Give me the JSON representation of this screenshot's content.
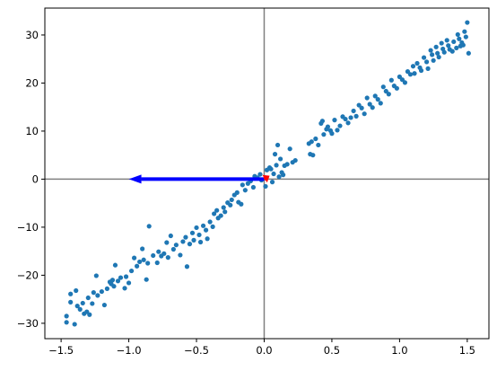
{
  "chart_data": {
    "type": "scatter",
    "title": "",
    "xlabel": "",
    "ylabel": "",
    "xlim": [
      -1.62,
      1.66
    ],
    "ylim": [
      -33.2,
      35.6
    ],
    "xticks": [
      -1.5,
      -1.0,
      -0.5,
      0.0,
      0.5,
      1.0,
      1.5
    ],
    "xtick_labels": [
      "−1.5",
      "−1.0",
      "−0.5",
      "0.0",
      "0.5",
      "1.0",
      "1.5"
    ],
    "yticks": [
      -30,
      -20,
      -10,
      0,
      10,
      20,
      30
    ],
    "ytick_labels": [
      "−30",
      "−20",
      "−10",
      "0",
      "10",
      "20",
      "30"
    ],
    "grid": false,
    "reference_lines": {
      "x": 0,
      "y": 0,
      "color": "#808080"
    },
    "arrows": [
      {
        "x0": 0.0,
        "y0": 0.0,
        "x1": -1.0,
        "y1": 0.0,
        "color": "#0000ff"
      },
      {
        "x0": 0.0,
        "y0": 0.0,
        "x1": 0.04,
        "y1": 0.7,
        "color": "#ff0000"
      }
    ],
    "series": [
      {
        "color": "#1f77b4",
        "points": [
          [
            -1.46,
            -29.8
          ],
          [
            -1.46,
            -28.5
          ],
          [
            -1.43,
            -25.6
          ],
          [
            -1.43,
            -23.9
          ],
          [
            -1.4,
            -30.2
          ],
          [
            -1.39,
            -23.2
          ],
          [
            -1.38,
            -26.4
          ],
          [
            -1.36,
            -27.1
          ],
          [
            -1.34,
            -25.8
          ],
          [
            -1.33,
            -28.0
          ],
          [
            -1.31,
            -27.6
          ],
          [
            -1.3,
            -24.7
          ],
          [
            -1.29,
            -28.2
          ],
          [
            -1.27,
            -25.9
          ],
          [
            -1.26,
            -23.6
          ],
          [
            -1.24,
            -20.1
          ],
          [
            -1.23,
            -24.2
          ],
          [
            -1.2,
            -23.4
          ],
          [
            -1.18,
            -26.2
          ],
          [
            -1.16,
            -22.8
          ],
          [
            -1.14,
            -21.4
          ],
          [
            -1.13,
            -21.8
          ],
          [
            -1.12,
            -21.0
          ],
          [
            -1.11,
            -22.3
          ],
          [
            -1.1,
            -17.9
          ],
          [
            -1.08,
            -21.2
          ],
          [
            -1.06,
            -20.5
          ],
          [
            -1.03,
            -22.7
          ],
          [
            -1.02,
            -20.3
          ],
          [
            -1.0,
            -21.6
          ],
          [
            -0.98,
            -19.1
          ],
          [
            -0.96,
            -16.4
          ],
          [
            -0.94,
            -18.1
          ],
          [
            -0.92,
            -17.2
          ],
          [
            -0.9,
            -14.5
          ],
          [
            -0.89,
            -16.8
          ],
          [
            -0.87,
            -20.9
          ],
          [
            -0.86,
            -17.5
          ],
          [
            -0.85,
            -9.8
          ],
          [
            -0.82,
            -15.9
          ],
          [
            -0.79,
            -17.4
          ],
          [
            -0.78,
            -15.1
          ],
          [
            -0.76,
            -16.0
          ],
          [
            -0.74,
            -15.5
          ],
          [
            -0.72,
            -13.2
          ],
          [
            -0.71,
            -16.3
          ],
          [
            -0.69,
            -11.8
          ],
          [
            -0.67,
            -14.6
          ],
          [
            -0.65,
            -13.7
          ],
          [
            -0.62,
            -15.8
          ],
          [
            -0.6,
            -13.0
          ],
          [
            -0.58,
            -12.1
          ],
          [
            -0.57,
            -18.2
          ],
          [
            -0.55,
            -13.5
          ],
          [
            -0.53,
            -11.2
          ],
          [
            -0.52,
            -12.7
          ],
          [
            -0.5,
            -10.1
          ],
          [
            -0.48,
            -11.6
          ],
          [
            -0.47,
            -13.1
          ],
          [
            -0.45,
            -9.7
          ],
          [
            -0.43,
            -10.6
          ],
          [
            -0.42,
            -12.4
          ],
          [
            -0.4,
            -8.9
          ],
          [
            -0.38,
            -9.9
          ],
          [
            -0.37,
            -7.2
          ],
          [
            -0.35,
            -6.5
          ],
          [
            -0.34,
            -8.1
          ],
          [
            -0.32,
            -7.6
          ],
          [
            -0.3,
            -5.9
          ],
          [
            -0.29,
            -6.8
          ],
          [
            -0.27,
            -4.9
          ],
          [
            -0.25,
            -5.4
          ],
          [
            -0.24,
            -4.3
          ],
          [
            -0.22,
            -3.3
          ],
          [
            -0.2,
            -2.8
          ],
          [
            -0.19,
            -4.8
          ],
          [
            -0.17,
            -5.2
          ],
          [
            -0.16,
            -1.2
          ],
          [
            -0.14,
            -2.3
          ],
          [
            -0.12,
            -0.9
          ],
          [
            -0.1,
            -0.4
          ],
          [
            -0.08,
            -1.7
          ],
          [
            -0.07,
            0.6
          ],
          [
            -0.05,
            0.3
          ],
          [
            -0.03,
            1.0
          ],
          [
            -0.02,
            -0.2
          ],
          [
            0.01,
            -1.5
          ],
          [
            0.02,
            1.9
          ],
          [
            0.04,
            2.4
          ],
          [
            0.05,
            2.1
          ],
          [
            0.06,
            -0.6
          ],
          [
            0.07,
            1.1
          ],
          [
            0.08,
            5.2
          ],
          [
            0.09,
            2.9
          ],
          [
            0.1,
            7.1
          ],
          [
            0.11,
            0.5
          ],
          [
            0.12,
            4.2
          ],
          [
            0.13,
            1.4
          ],
          [
            0.14,
            0.9
          ],
          [
            0.15,
            2.8
          ],
          [
            0.17,
            3.1
          ],
          [
            0.19,
            6.3
          ],
          [
            0.21,
            3.5
          ],
          [
            0.23,
            3.9
          ],
          [
            0.33,
            7.4
          ],
          [
            0.34,
            5.2
          ],
          [
            0.35,
            7.8
          ],
          [
            0.36,
            5.0
          ],
          [
            0.38,
            8.4
          ],
          [
            0.4,
            7.1
          ],
          [
            0.42,
            11.6
          ],
          [
            0.43,
            12.1
          ],
          [
            0.44,
            9.3
          ],
          [
            0.46,
            10.4
          ],
          [
            0.47,
            10.9
          ],
          [
            0.49,
            10.1
          ],
          [
            0.5,
            9.5
          ],
          [
            0.52,
            12.3
          ],
          [
            0.54,
            10.2
          ],
          [
            0.56,
            11.1
          ],
          [
            0.58,
            13.0
          ],
          [
            0.6,
            12.5
          ],
          [
            0.62,
            11.7
          ],
          [
            0.64,
            12.8
          ],
          [
            0.66,
            14.2
          ],
          [
            0.68,
            13.1
          ],
          [
            0.7,
            15.4
          ],
          [
            0.72,
            14.8
          ],
          [
            0.74,
            13.6
          ],
          [
            0.76,
            16.9
          ],
          [
            0.78,
            15.6
          ],
          [
            0.8,
            14.9
          ],
          [
            0.82,
            17.3
          ],
          [
            0.84,
            16.6
          ],
          [
            0.86,
            15.8
          ],
          [
            0.88,
            19.2
          ],
          [
            0.9,
            18.3
          ],
          [
            0.92,
            17.7
          ],
          [
            0.94,
            20.6
          ],
          [
            0.96,
            19.4
          ],
          [
            0.98,
            18.9
          ],
          [
            1.0,
            21.3
          ],
          [
            1.02,
            20.7
          ],
          [
            1.04,
            20.1
          ],
          [
            1.06,
            22.4
          ],
          [
            1.08,
            21.8
          ],
          [
            1.1,
            23.5
          ],
          [
            1.11,
            22.0
          ],
          [
            1.13,
            24.1
          ],
          [
            1.15,
            23.2
          ],
          [
            1.16,
            22.6
          ],
          [
            1.18,
            25.3
          ],
          [
            1.2,
            24.4
          ],
          [
            1.21,
            23.0
          ],
          [
            1.23,
            26.8
          ],
          [
            1.24,
            25.9
          ],
          [
            1.25,
            24.7
          ],
          [
            1.27,
            27.5
          ],
          [
            1.28,
            26.2
          ],
          [
            1.29,
            25.4
          ],
          [
            1.31,
            28.3
          ],
          [
            1.32,
            27.1
          ],
          [
            1.33,
            26.4
          ],
          [
            1.35,
            28.9
          ],
          [
            1.36,
            27.8
          ],
          [
            1.37,
            27.0
          ],
          [
            1.39,
            26.6
          ],
          [
            1.4,
            28.6
          ],
          [
            1.42,
            27.3
          ],
          [
            1.43,
            30.1
          ],
          [
            1.44,
            29.2
          ],
          [
            1.45,
            27.7
          ],
          [
            1.46,
            28.4
          ],
          [
            1.47,
            27.9
          ],
          [
            1.48,
            30.7
          ],
          [
            1.49,
            29.6
          ],
          [
            1.5,
            32.6
          ],
          [
            1.51,
            26.2
          ]
        ]
      }
    ]
  }
}
